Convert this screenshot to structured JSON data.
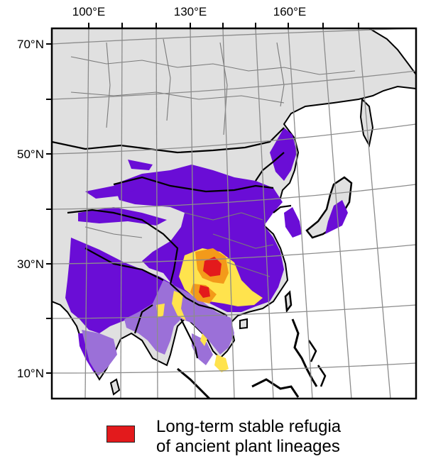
{
  "map": {
    "lon_labels": [
      "100°E",
      "130°E",
      "160°E"
    ],
    "lat_labels": [
      "70°N",
      "50°N",
      "30°N",
      "10°N"
    ],
    "colors": {
      "land": "#e0e0e0",
      "water": "#ffffff",
      "border": "#000000",
      "grid": "#8c8c8c",
      "purple_dark": "#6a0dd6",
      "purple_light": "#9b70d8",
      "orange": "#f39a1a",
      "yellow": "#ffe34d",
      "red": "#e31a1c"
    }
  },
  "legend": {
    "line1": "Long-term stable refugia",
    "line2": "of ancient plant lineages",
    "swatch_color": "#e31a1c"
  }
}
